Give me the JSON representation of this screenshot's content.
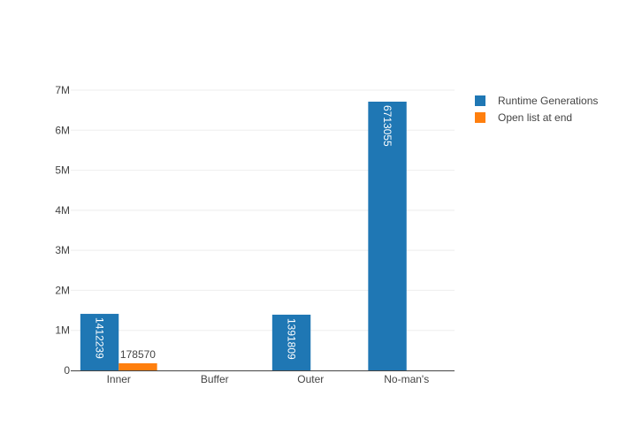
{
  "chart_data": {
    "type": "bar",
    "categories": [
      "Inner",
      "Buffer",
      "Outer",
      "No-man's"
    ],
    "series": [
      {
        "name": "Runtime Generations",
        "color": "#1f77b4",
        "values": [
          1412239,
          null,
          1391809,
          6713055
        ],
        "labels": [
          "1412239",
          "",
          "1391809",
          "6713055"
        ]
      },
      {
        "name": "Open list at end",
        "color": "#ff7f0e",
        "values": [
          178570,
          null,
          null,
          null
        ],
        "labels": [
          "178570",
          "",
          "",
          ""
        ]
      }
    ],
    "ylim": [
      0,
      7000000
    ],
    "yticks": [
      {
        "value": 0,
        "label": "0"
      },
      {
        "value": 1000000,
        "label": "1M"
      },
      {
        "value": 2000000,
        "label": "2M"
      },
      {
        "value": 3000000,
        "label": "3M"
      },
      {
        "value": 4000000,
        "label": "4M"
      },
      {
        "value": 5000000,
        "label": "5M"
      },
      {
        "value": 6000000,
        "label": "6M"
      },
      {
        "value": 7000000,
        "label": "7M"
      }
    ],
    "grid": true,
    "legend_position": "top-right",
    "title": "",
    "xlabel": "",
    "ylabel": ""
  }
}
